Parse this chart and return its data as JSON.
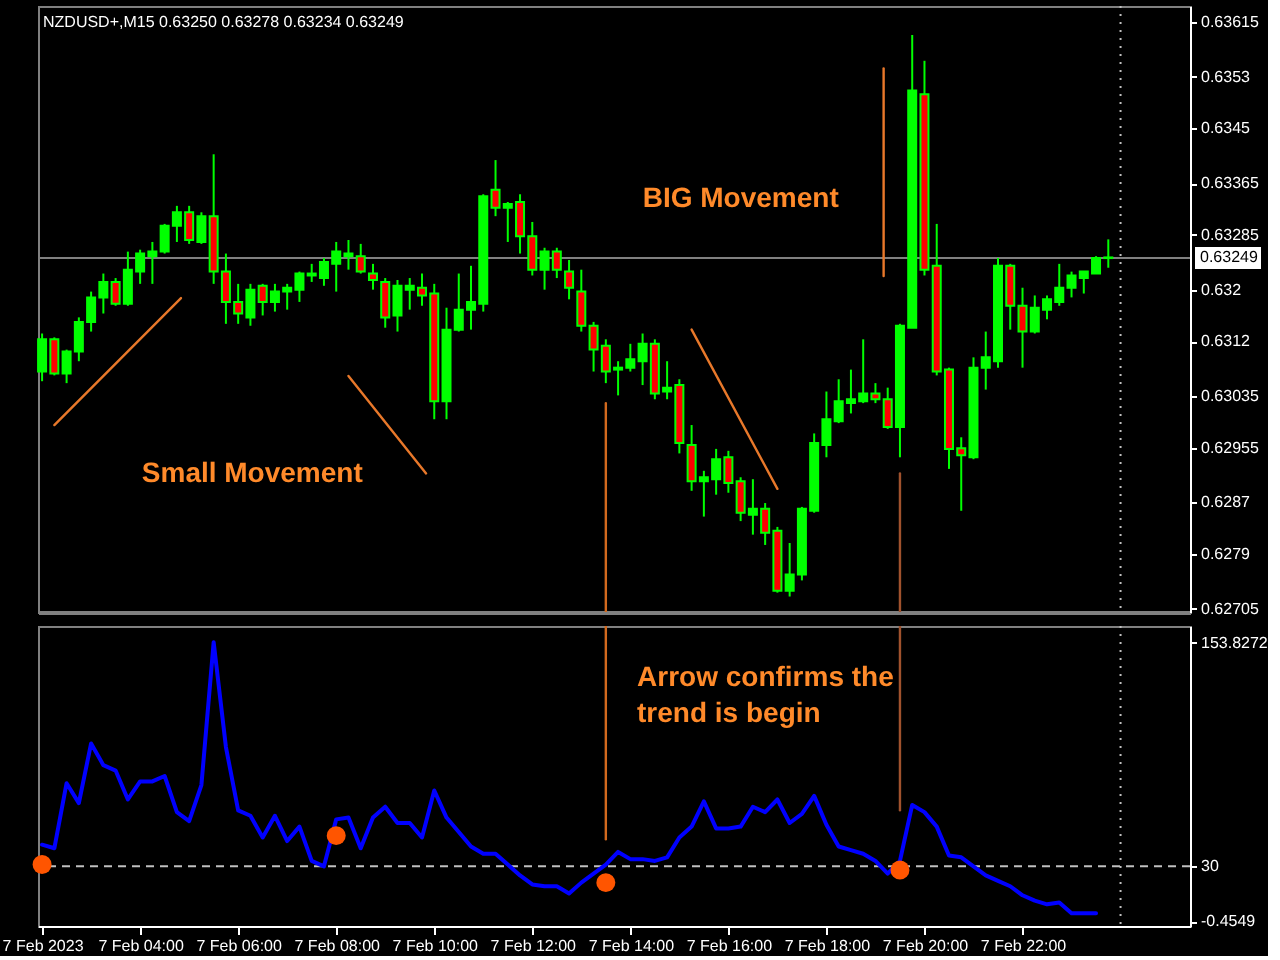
{
  "chart_data": [
    {
      "type": "candlestick",
      "title": "NZDUSD+,M15 0.63250 0.63278 0.63234 0.63249",
      "x": [
        "2023-02-07T02:00",
        "2023-02-07T02:15",
        "2023-02-07T02:30",
        "2023-02-07T02:45",
        "2023-02-07T03:00",
        "2023-02-07T03:15",
        "2023-02-07T03:30",
        "2023-02-07T03:45",
        "2023-02-07T04:00",
        "2023-02-07T04:15",
        "2023-02-07T04:30",
        "2023-02-07T04:45",
        "2023-02-07T05:00",
        "2023-02-07T05:15",
        "2023-02-07T05:30",
        "2023-02-07T05:45",
        "2023-02-07T06:00",
        "2023-02-07T06:15",
        "2023-02-07T06:30",
        "2023-02-07T06:45",
        "2023-02-07T07:00",
        "2023-02-07T07:15",
        "2023-02-07T07:30",
        "2023-02-07T07:45",
        "2023-02-07T08:00",
        "2023-02-07T08:15",
        "2023-02-07T08:30",
        "2023-02-07T08:45",
        "2023-02-07T09:00",
        "2023-02-07T09:15",
        "2023-02-07T09:30",
        "2023-02-07T09:45",
        "2023-02-07T10:00",
        "2023-02-07T10:15",
        "2023-02-07T10:30",
        "2023-02-07T10:45",
        "2023-02-07T11:00",
        "2023-02-07T11:15",
        "2023-02-07T11:30",
        "2023-02-07T11:45",
        "2023-02-07T12:00",
        "2023-02-07T12:15",
        "2023-02-07T12:30",
        "2023-02-07T12:45",
        "2023-02-07T13:00",
        "2023-02-07T13:15",
        "2023-02-07T13:30",
        "2023-02-07T13:45",
        "2023-02-07T14:00",
        "2023-02-07T14:15",
        "2023-02-07T14:30",
        "2023-02-07T14:45",
        "2023-02-07T15:00",
        "2023-02-07T15:15",
        "2023-02-07T15:30",
        "2023-02-07T15:45",
        "2023-02-07T16:00",
        "2023-02-07T16:15",
        "2023-02-07T16:30",
        "2023-02-07T16:45",
        "2023-02-07T17:00",
        "2023-02-07T17:15",
        "2023-02-07T17:30",
        "2023-02-07T17:45",
        "2023-02-07T18:00",
        "2023-02-07T18:15",
        "2023-02-07T18:30",
        "2023-02-07T18:45",
        "2023-02-07T19:00",
        "2023-02-07T19:15",
        "2023-02-07T19:30",
        "2023-02-07T19:45",
        "2023-02-07T20:00",
        "2023-02-07T20:15",
        "2023-02-07T20:30",
        "2023-02-07T20:45",
        "2023-02-07T21:00",
        "2023-02-07T21:15",
        "2023-02-07T21:30",
        "2023-02-07T21:45",
        "2023-02-07T22:00",
        "2023-02-07T22:15",
        "2023-02-07T22:30",
        "2023-02-07T22:45",
        "2023-02-07T23:00",
        "2023-02-07T23:15",
        "2023-02-07T23:30",
        "2023-02-07T23:45"
      ],
      "ohlc": [
        [
          0.63073,
          0.63132,
          0.63058,
          0.63123
        ],
        [
          0.63123,
          0.63126,
          0.63067,
          0.6307
        ],
        [
          0.6307,
          0.63107,
          0.63055,
          0.63104
        ],
        [
          0.63104,
          0.63157,
          0.63089,
          0.6315
        ],
        [
          0.6315,
          0.63197,
          0.63135,
          0.63188
        ],
        [
          0.63188,
          0.63225,
          0.63163,
          0.63212
        ],
        [
          0.63212,
          0.63218,
          0.63175,
          0.63178
        ],
        [
          0.63178,
          0.63259,
          0.63175,
          0.63231
        ],
        [
          0.63228,
          0.63262,
          0.63209,
          0.63256
        ],
        [
          0.63252,
          0.63274,
          0.63209,
          0.63259
        ],
        [
          0.63259,
          0.63302,
          0.63256,
          0.63299
        ],
        [
          0.63299,
          0.6333,
          0.63274,
          0.6332
        ],
        [
          0.6332,
          0.6333,
          0.63271,
          0.63277
        ],
        [
          0.63274,
          0.6332,
          0.63271,
          0.63314
        ],
        [
          0.63314,
          0.6341,
          0.63209,
          0.63228
        ],
        [
          0.63228,
          0.63256,
          0.63147,
          0.63181
        ],
        [
          0.63181,
          0.63209,
          0.63147,
          0.63163
        ],
        [
          0.63157,
          0.63209,
          0.63144,
          0.632
        ],
        [
          0.63206,
          0.63209,
          0.6316,
          0.63181
        ],
        [
          0.63181,
          0.63209,
          0.63166,
          0.63197
        ],
        [
          0.63197,
          0.63209,
          0.63169,
          0.63203
        ],
        [
          0.632,
          0.63228,
          0.63181,
          0.63225
        ],
        [
          0.63222,
          0.6324,
          0.63212,
          0.63225
        ],
        [
          0.63218,
          0.63249,
          0.63206,
          0.63243
        ],
        [
          0.6324,
          0.63274,
          0.63197,
          0.63259
        ],
        [
          0.63252,
          0.63277,
          0.63231,
          0.63256
        ],
        [
          0.63252,
          0.63271,
          0.63225,
          0.63228
        ],
        [
          0.63225,
          0.6324,
          0.632,
          0.63215
        ],
        [
          0.63212,
          0.63218,
          0.63141,
          0.63157
        ],
        [
          0.6316,
          0.63215,
          0.63135,
          0.63206
        ],
        [
          0.632,
          0.63218,
          0.63169,
          0.63206
        ],
        [
          0.63203,
          0.63225,
          0.63175,
          0.63191
        ],
        [
          0.63194,
          0.63209,
          0.62999,
          0.63027
        ],
        [
          0.63027,
          0.63172,
          0.62999,
          0.63138
        ],
        [
          0.63138,
          0.63225,
          0.63135,
          0.63169
        ],
        [
          0.63169,
          0.63237,
          0.63138,
          0.63181
        ],
        [
          0.63178,
          0.63348,
          0.63166,
          0.63345
        ],
        [
          0.63355,
          0.63401,
          0.63314,
          0.63327
        ],
        [
          0.63327,
          0.63336,
          0.63274,
          0.63333
        ],
        [
          0.63336,
          0.63348,
          0.63256,
          0.63283
        ],
        [
          0.63283,
          0.63305,
          0.63222,
          0.63231
        ],
        [
          0.63231,
          0.63265,
          0.632,
          0.63259
        ],
        [
          0.63259,
          0.63265,
          0.63218,
          0.63231
        ],
        [
          0.63228,
          0.63246,
          0.63185,
          0.63203
        ],
        [
          0.63197,
          0.63231,
          0.63135,
          0.63144
        ],
        [
          0.63144,
          0.6315,
          0.63073,
          0.63107
        ],
        [
          0.63113,
          0.63123,
          0.63055,
          0.63073
        ],
        [
          0.63076,
          0.63089,
          0.63036,
          0.63079
        ],
        [
          0.63079,
          0.63116,
          0.63073,
          0.63092
        ],
        [
          0.63089,
          0.63132,
          0.63052,
          0.63116
        ],
        [
          0.63116,
          0.63123,
          0.6303,
          0.63039
        ],
        [
          0.63042,
          0.63089,
          0.6303,
          0.63048
        ],
        [
          0.63052,
          0.63061,
          0.62946,
          0.62962
        ],
        [
          0.62959,
          0.6299,
          0.62888,
          0.62903
        ],
        [
          0.62903,
          0.62919,
          0.62848,
          0.62909
        ],
        [
          0.62906,
          0.62953,
          0.62882,
          0.62937
        ],
        [
          0.6294,
          0.6295,
          0.62885,
          0.629
        ],
        [
          0.62903,
          0.62909,
          0.62841,
          0.62854
        ],
        [
          0.62851,
          0.62906,
          0.6282,
          0.6286
        ],
        [
          0.6286,
          0.62869,
          0.62804,
          0.62823
        ],
        [
          0.62826,
          0.62832,
          0.6273,
          0.62733
        ],
        [
          0.62733,
          0.62807,
          0.62724,
          0.62758
        ],
        [
          0.62758,
          0.62863,
          0.62749,
          0.6286
        ],
        [
          0.62857,
          0.62977,
          0.62854,
          0.62962
        ],
        [
          0.62959,
          0.63042,
          0.6294,
          0.62999
        ],
        [
          0.62996,
          0.63061,
          0.62993,
          0.63027
        ],
        [
          0.63024,
          0.63076,
          0.63008,
          0.6303
        ],
        [
          0.63027,
          0.63123,
          0.63024,
          0.63039
        ],
        [
          0.63039,
          0.63055,
          0.63024,
          0.6303
        ],
        [
          0.6303,
          0.63048,
          0.62984,
          0.62987
        ],
        [
          0.62987,
          0.63147,
          0.6294,
          0.63144
        ],
        [
          0.63141,
          0.63595,
          0.63141,
          0.63509
        ],
        [
          0.63503,
          0.63555,
          0.63222,
          0.63231
        ],
        [
          0.63237,
          0.63302,
          0.63067,
          0.63073
        ],
        [
          0.63076,
          0.63079,
          0.62922,
          0.62953
        ],
        [
          0.62954,
          0.62971,
          0.62857,
          0.62943
        ],
        [
          0.6294,
          0.63095,
          0.62937,
          0.63079
        ],
        [
          0.63079,
          0.63135,
          0.63045,
          0.63095
        ],
        [
          0.63089,
          0.63249,
          0.63079,
          0.63237
        ],
        [
          0.63237,
          0.6324,
          0.63138,
          0.63175
        ],
        [
          0.63175,
          0.63203,
          0.63079,
          0.63135
        ],
        [
          0.63135,
          0.63191,
          0.63132,
          0.63172
        ],
        [
          0.63169,
          0.63191,
          0.63154,
          0.63185
        ],
        [
          0.63181,
          0.6324,
          0.63175,
          0.63203
        ],
        [
          0.63203,
          0.63228,
          0.63188,
          0.63222
        ],
        [
          0.63218,
          0.63228,
          0.63194,
          0.63228
        ],
        [
          0.63225,
          0.63252,
          0.63225,
          0.63249
        ],
        [
          0.6325,
          0.63278,
          0.63234,
          0.63249
        ]
      ],
      "color": "#00ff00",
      "colors": [
        "#00ff00",
        "#ff0000",
        "#00ff00",
        "#00ff00",
        "#00ff00",
        "#00ff00",
        "#ff0000",
        "#00ff00",
        "#00ff00",
        "#00ff00",
        "#00ff00",
        "#00ff00",
        "#ff0000",
        "#00ff00",
        "#ff0000",
        "#ff0000",
        "#ff0000",
        "#00ff00",
        "#ff0000",
        "#00ff00",
        "#00ff00",
        "#00ff00",
        "#00ff00",
        "#00ff00",
        "#00ff00",
        "#00ff00",
        "#ff0000",
        "#ff0000",
        "#ff0000",
        "#00ff00",
        "#00ff00",
        "#ff0000",
        "#ff0000",
        "#00ff00",
        "#00ff00",
        "#00ff00",
        "#00ff00",
        "#ff0000",
        "#00ff00",
        "#ff0000",
        "#ff0000",
        "#00ff00",
        "#ff0000",
        "#ff0000",
        "#ff0000",
        "#ff0000",
        "#ff0000",
        "#00ff00",
        "#00ff00",
        "#00ff00",
        "#ff0000",
        "#00ff00",
        "#ff0000",
        "#ff0000",
        "#00ff00",
        "#00ff00",
        "#ff0000",
        "#ff0000",
        "#00ff00",
        "#ff0000",
        "#ff0000",
        "#00ff00",
        "#00ff00",
        "#00ff00",
        "#00ff00",
        "#00ff00",
        "#00ff00",
        "#00ff00",
        "#ff0000",
        "#ff0000",
        "#00ff00",
        "#00ff00",
        "#ff0000",
        "#ff0000",
        "#ff0000",
        "#ff0000",
        "#00ff00",
        "#00ff00",
        "#00ff00",
        "#ff0000",
        "#ff0000",
        "#00ff00",
        "#00ff00",
        "#00ff00",
        "#00ff00",
        "#00ff00",
        "#00ff00",
        "#ff0000"
      ],
      "series": [
        {
          "type": "line",
          "x": [
            "2023-02-07T02:15",
            "2023-02-07T04:50"
          ],
          "values": [
            0.6299,
            0.63187
          ],
          "color": "#e8782a"
        },
        {
          "type": "line",
          "x": [
            "2023-02-07T08:15",
            "2023-02-07T09:50"
          ],
          "values": [
            0.63066,
            0.62915
          ],
          "color": "#e8782a"
        },
        {
          "type": "line",
          "x": [
            "2023-02-07T15:15",
            "2023-02-07T17:00"
          ],
          "values": [
            0.63138,
            0.62891
          ],
          "color": "#e8782a"
        },
        {
          "type": "line",
          "x": [
            "2023-02-07T13:30",
            "2023-02-07T13:30"
          ],
          "values": [
            0.63024,
            0.627
          ],
          "color": "#d2691e"
        },
        {
          "type": "line",
          "x": [
            "2023-02-07T19:10",
            "2023-02-07T19:10"
          ],
          "values": [
            0.63543,
            0.63221
          ],
          "color": "#e8782a"
        },
        {
          "type": "line",
          "x": [
            "2023-02-07T19:30",
            "2023-02-07T19:30"
          ],
          "values": [
            0.62915,
            0.627
          ],
          "color": "#a0522d"
        }
      ],
      "xlim": [
        "2023-02-07T01:55",
        "2023-02-08T01:25"
      ],
      "ylim": [
        0.627,
        0.6364
      ],
      "yticks": [
        0.63615,
        0.6353,
        0.6345,
        0.63365,
        0.63285,
        0.632,
        0.6312,
        0.63035,
        0.62955,
        0.6287,
        0.6279,
        0.62705
      ],
      "tick_labels": "y",
      "ref_lines": [
        {
          "axis": "y",
          "value": 0.63249,
          "label": "0.63249",
          "color": "#808080"
        },
        {
          "axis": "x",
          "value": "2023-02-08T00:00",
          "color": "#c0c0c0",
          "line_style": "dotted"
        }
      ],
      "annotations": [
        "Small Movement",
        "BIG Movement"
      ]
    },
    {
      "type": "line",
      "x": [
        "2023-02-07T02:00",
        "2023-02-07T02:15",
        "2023-02-07T02:30",
        "2023-02-07T02:45",
        "2023-02-07T03:00",
        "2023-02-07T03:15",
        "2023-02-07T03:30",
        "2023-02-07T03:45",
        "2023-02-07T04:00",
        "2023-02-07T04:15",
        "2023-02-07T04:30",
        "2023-02-07T04:45",
        "2023-02-07T05:00",
        "2023-02-07T05:15",
        "2023-02-07T05:30",
        "2023-02-07T05:45",
        "2023-02-07T06:00",
        "2023-02-07T06:15",
        "2023-02-07T06:30",
        "2023-02-07T06:45",
        "2023-02-07T07:00",
        "2023-02-07T07:15",
        "2023-02-07T07:30",
        "2023-02-07T07:45",
        "2023-02-07T08:00",
        "2023-02-07T08:15",
        "2023-02-07T08:30",
        "2023-02-07T08:45",
        "2023-02-07T09:00",
        "2023-02-07T09:15",
        "2023-02-07T09:30",
        "2023-02-07T09:45",
        "2023-02-07T10:00",
        "2023-02-07T10:15",
        "2023-02-07T10:30",
        "2023-02-07T10:45",
        "2023-02-07T11:00",
        "2023-02-07T11:15",
        "2023-02-07T11:30",
        "2023-02-07T11:45",
        "2023-02-07T12:00",
        "2023-02-07T12:15",
        "2023-02-07T12:30",
        "2023-02-07T12:45",
        "2023-02-07T13:00",
        "2023-02-07T13:15",
        "2023-02-07T13:30",
        "2023-02-07T13:45",
        "2023-02-07T14:00",
        "2023-02-07T14:15",
        "2023-02-07T14:30",
        "2023-02-07T14:45",
        "2023-02-07T15:00",
        "2023-02-07T15:15",
        "2023-02-07T15:30",
        "2023-02-07T15:45",
        "2023-02-07T16:00",
        "2023-02-07T16:15",
        "2023-02-07T16:30",
        "2023-02-07T16:45",
        "2023-02-07T17:00",
        "2023-02-07T17:15",
        "2023-02-07T17:30",
        "2023-02-07T17:45",
        "2023-02-07T18:00",
        "2023-02-07T18:15",
        "2023-02-07T18:30",
        "2023-02-07T18:45",
        "2023-02-07T19:00",
        "2023-02-07T19:15",
        "2023-02-07T19:30",
        "2023-02-07T19:45",
        "2023-02-07T20:00",
        "2023-02-07T20:15",
        "2023-02-07T20:30",
        "2023-02-07T20:45",
        "2023-02-07T21:00",
        "2023-02-07T21:15",
        "2023-02-07T21:30",
        "2023-02-07T21:45",
        "2023-02-07T22:00",
        "2023-02-07T22:15",
        "2023-02-07T22:30",
        "2023-02-07T22:45",
        "2023-02-07T23:00",
        "2023-02-07T23:15",
        "2023-02-07T23:30"
      ],
      "series": [
        {
          "color": "#0000ff",
          "values": [
            42,
            40,
            76,
            65,
            98,
            86,
            83,
            67,
            77,
            77,
            80,
            60,
            55,
            75,
            154,
            96,
            61,
            58,
            46,
            58,
            44,
            52,
            33,
            30,
            56,
            57,
            40,
            57,
            63,
            54,
            54,
            46,
            72,
            57,
            49,
            41,
            37,
            37,
            31,
            25,
            20,
            19,
            19,
            15,
            21,
            26,
            31,
            38,
            34,
            34,
            33,
            35,
            46,
            52,
            66,
            51,
            51,
            52,
            63,
            60,
            67,
            54,
            59,
            69,
            53,
            41,
            39,
            37,
            33,
            26,
            33,
            64,
            60,
            52,
            36,
            35,
            30,
            25,
            22,
            19,
            14,
            11,
            9,
            10,
            4,
            4,
            4
          ]
        },
        {
          "type": "scatter",
          "x": [
            "2023-02-07T02:00",
            "2023-02-07T08:00",
            "2023-02-07T13:30",
            "2023-02-07T19:30"
          ],
          "values": [
            31,
            47,
            21,
            28
          ],
          "color": "#ff5500",
          "marker": "circle"
        },
        {
          "type": "line",
          "x": [
            "2023-02-07T13:30",
            "2023-02-07T13:30"
          ],
          "values": [
            163,
            45
          ],
          "color": "#d2691e"
        },
        {
          "type": "line",
          "x": [
            "2023-02-07T19:30",
            "2023-02-07T19:30"
          ],
          "values": [
            163,
            61
          ],
          "color": "#a0522d"
        }
      ],
      "xlim": [
        "2023-02-07T01:55",
        "2023-02-08T01:25"
      ],
      "xticks": [
        {
          "value": "2023-02-07T02:00",
          "label": "7 Feb 2023"
        },
        {
          "value": "2023-02-07T04:00",
          "label": "7 Feb 04:00"
        },
        {
          "value": "2023-02-07T06:00",
          "label": "7 Feb 06:00"
        },
        {
          "value": "2023-02-07T08:00",
          "label": "7 Feb 08:00"
        },
        {
          "value": "2023-02-07T10:00",
          "label": "7 Feb 10:00"
        },
        {
          "value": "2023-02-07T12:00",
          "label": "7 Feb 12:00"
        },
        {
          "value": "2023-02-07T14:00",
          "label": "7 Feb 14:00"
        },
        {
          "value": "2023-02-07T16:00",
          "label": "7 Feb 16:00"
        },
        {
          "value": "2023-02-07T18:00",
          "label": "7 Feb 18:00"
        },
        {
          "value": "2023-02-07T20:00",
          "label": "7 Feb 20:00"
        },
        {
          "value": "2023-02-07T22:00",
          "label": "7 Feb 22:00"
        }
      ],
      "ylim": [
        -3,
        163
      ],
      "yticks": [
        153.8272,
        30,
        -0.4549
      ],
      "ref_lines": [
        {
          "axis": "y",
          "value": 30,
          "color": "#c0c0c0",
          "line_style": "dashed"
        },
        {
          "axis": "x",
          "value": "2023-02-08T00:00",
          "color": "#c0c0c0",
          "line_style": "dotted"
        }
      ],
      "annotations": [
        "Arrow confirms the trend is begin"
      ]
    }
  ]
}
